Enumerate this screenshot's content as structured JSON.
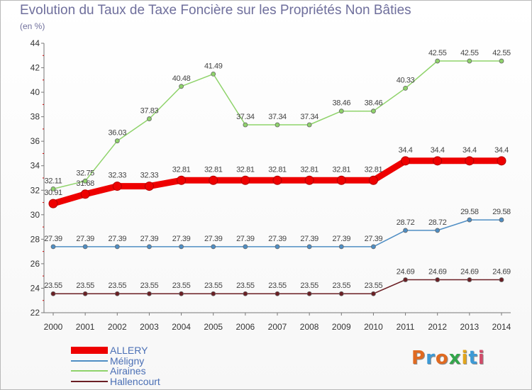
{
  "title": "Evolution du Taux de Taxe Foncière sur les Propriétés Non Bâties",
  "subtitle": "(en %)",
  "logo": {
    "text": "Proxiti",
    "colors": [
      "#e06a21",
      "#3d9ad6",
      "#e06a21",
      "#33a64b",
      "#e2a51d",
      "#3d9ad6",
      "#d24c6a"
    ]
  },
  "chart_data": {
    "type": "line",
    "x": [
      "2000",
      "2001",
      "2002",
      "2003",
      "2004",
      "2005",
      "2006",
      "2007",
      "2008",
      "2009",
      "2010",
      "2011",
      "2012",
      "2013",
      "2014"
    ],
    "ylim": [
      22,
      44
    ],
    "yticks": [
      22,
      24,
      26,
      28,
      30,
      32,
      34,
      36,
      38,
      40,
      42,
      44
    ],
    "grid": false,
    "legend_position": "bottom-left",
    "series": [
      {
        "name": "ALLERY",
        "color": "#ee0000",
        "values": [
          30.91,
          31.68,
          32.33,
          32.33,
          32.81,
          32.81,
          32.81,
          32.81,
          32.81,
          32.81,
          32.81,
          34.4,
          34.4,
          34.4,
          34.4
        ],
        "labels": [
          "30.91",
          "31.68",
          "32.33",
          "32.33",
          "32.81",
          "32.81",
          "32.81",
          "32.81",
          "32.81",
          "32.81",
          "32.81",
          "34.4",
          "34.4",
          "34.4",
          "34.4"
        ]
      },
      {
        "name": "Méligny",
        "color": "#4f8ec4",
        "values": [
          27.39,
          27.39,
          27.39,
          27.39,
          27.39,
          27.39,
          27.39,
          27.39,
          27.39,
          27.39,
          27.39,
          28.72,
          28.72,
          29.58,
          29.58
        ],
        "labels": [
          "27.39",
          "27.39",
          "27.39",
          "27.39",
          "27.39",
          "27.39",
          "27.39",
          "27.39",
          "27.39",
          "27.39",
          "27.39",
          "28.72",
          "28.72",
          "29.58",
          "29.58"
        ]
      },
      {
        "name": "Airaines",
        "color": "#8fd36b",
        "values": [
          32.11,
          32.75,
          36.03,
          37.83,
          40.48,
          41.49,
          37.34,
          37.34,
          37.34,
          38.46,
          38.46,
          40.33,
          42.55,
          42.55,
          42.55
        ],
        "labels": [
          "32.11",
          "32.75",
          "36.03",
          "37.83",
          "40.48",
          "41.49",
          "37.34",
          "37.34",
          "37.34",
          "38.46",
          "38.46",
          "40.33",
          "42.55",
          "42.55",
          "42.55"
        ]
      },
      {
        "name": "Hallencourt",
        "color": "#6b1f24",
        "values": [
          23.55,
          23.55,
          23.55,
          23.55,
          23.55,
          23.55,
          23.55,
          23.55,
          23.55,
          23.55,
          23.55,
          24.69,
          24.69,
          24.69,
          24.69
        ],
        "labels": [
          "23.55",
          "23.55",
          "23.55",
          "23.55",
          "23.55",
          "23.55",
          "23.55",
          "23.55",
          "23.55",
          "23.55",
          "23.55",
          "24.69",
          "24.69",
          "24.69",
          "24.69"
        ]
      }
    ]
  }
}
